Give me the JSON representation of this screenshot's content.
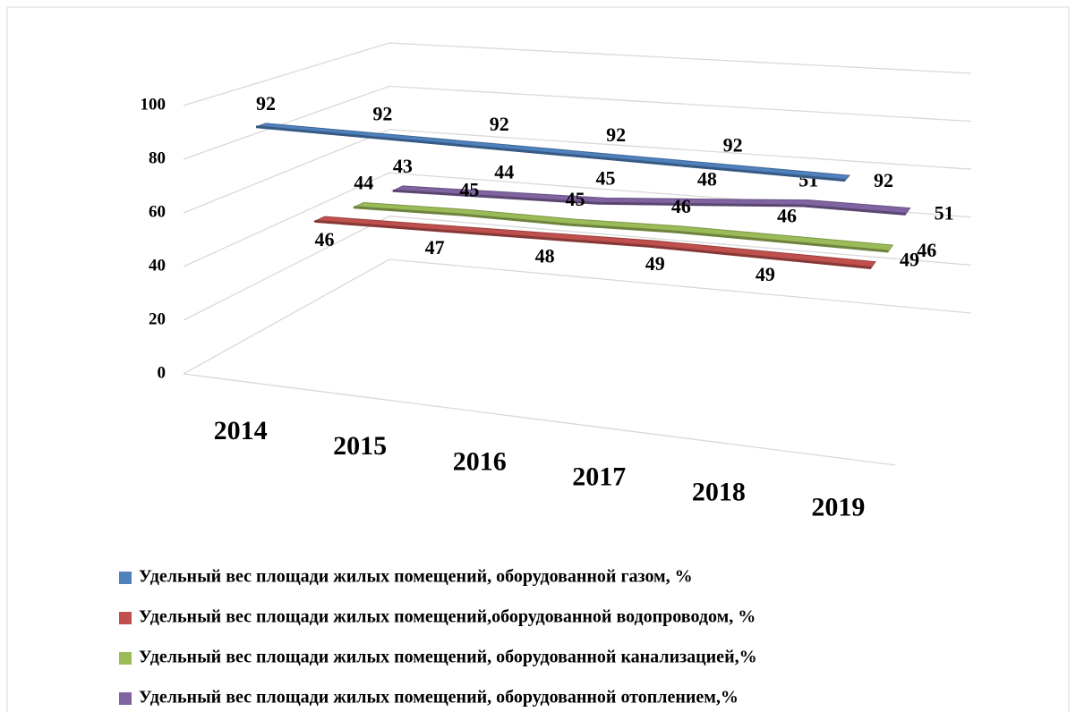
{
  "chart_data": {
    "type": "line3d",
    "categories": [
      "2014",
      "2015",
      "2016",
      "2017",
      "2018",
      "2019"
    ],
    "series": [
      {
        "name": "Удельный вес площади жилых помещений, оборудованной газом, %",
        "color": "#4f81bd",
        "values": [
          92,
          92,
          92,
          92,
          92,
          92
        ]
      },
      {
        "name": "Удельный вес площади жилых помещений,оборудованной водопроводом, %",
        "color": "#c0504d",
        "values": [
          46,
          47,
          48,
          49,
          49,
          49
        ]
      },
      {
        "name": "Удельный вес площади жилых помещений, оборудованной канализацией,%",
        "color": "#9bbb59",
        "values": [
          44,
          45,
          45,
          46,
          46,
          46
        ]
      },
      {
        "name": "Удельный вес площади жилых помещений, оборудованной отоплением,%",
        "color": "#8064a2",
        "values": [
          43,
          44,
          45,
          48,
          51,
          51
        ]
      }
    ],
    "ylim": [
      0,
      100
    ],
    "yticks": [
      0,
      20,
      40,
      60,
      80,
      100
    ],
    "grid": true,
    "legend": "bottom"
  }
}
